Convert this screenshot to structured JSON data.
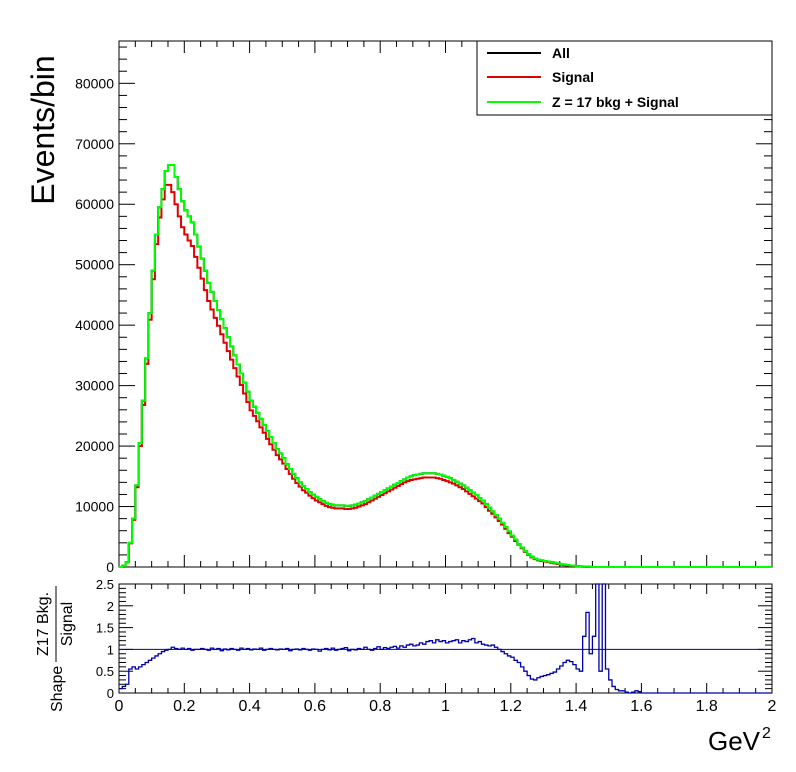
{
  "chart_data": [
    {
      "type": "line",
      "ylabel": "Events/bin",
      "xlim": [
        0,
        2
      ],
      "ylim": [
        0,
        87000
      ],
      "xticks": [
        "0",
        "0.2",
        "0.4",
        "0.6",
        "0.8",
        "1",
        "1.2",
        "1.4",
        "1.6",
        "1.8",
        "2"
      ],
      "yticks": [
        "0",
        "10000",
        "20000",
        "30000",
        "40000",
        "50000",
        "60000",
        "70000",
        "80000"
      ],
      "legend_position": "top-right",
      "bin_width": 0.01,
      "series": [
        {
          "name": "All",
          "color": "#000000",
          "values": [
            0,
            200,
            800,
            4000,
            8000,
            13500,
            20500,
            27500,
            34500,
            42000,
            49000,
            55000,
            59500,
            62500,
            65500,
            66500,
            66500,
            64500,
            62500,
            60500,
            59000,
            58000,
            57000,
            55000,
            53000,
            51000,
            49000,
            47000,
            45500,
            44000,
            42500,
            41000,
            39500,
            38000,
            36500,
            35000,
            33500,
            32000,
            30500,
            29000,
            27500,
            26500,
            25500,
            24500,
            23500,
            22500,
            21500,
            20500,
            19500,
            18800,
            18000,
            17000,
            16200,
            15400,
            14700,
            14000,
            13400,
            12900,
            12400,
            12000,
            11600,
            11200,
            10900,
            10600,
            10400,
            10300,
            10200,
            10200,
            10200,
            10100,
            10100,
            10200,
            10300,
            10500,
            10700,
            10900,
            11200,
            11500,
            11800,
            12100,
            12400,
            12700,
            13000,
            13300,
            13600,
            13900,
            14200,
            14500,
            14800,
            15000,
            15200,
            15300,
            15400,
            15500,
            15500,
            15500,
            15500,
            15400,
            15300,
            15100,
            14900,
            14700,
            14400,
            14100,
            13800,
            13500,
            13100,
            12700,
            12300,
            11900,
            11400,
            11000,
            10400,
            9800,
            9200,
            8600,
            8000,
            7300,
            6600,
            5900,
            5200,
            4500,
            3800,
            3200,
            2600,
            2100,
            1700,
            1400,
            1200,
            1100,
            1000,
            900,
            800,
            700,
            600,
            500,
            400,
            300,
            250,
            200,
            150,
            100,
            60,
            40,
            20,
            10,
            0,
            0,
            0,
            0,
            0,
            0,
            0,
            0,
            0,
            0,
            0,
            0,
            0,
            0,
            0,
            0,
            0,
            0,
            0,
            0,
            0,
            0,
            0,
            0,
            0,
            0,
            0,
            0,
            0,
            0,
            0,
            0,
            0,
            0,
            0,
            0,
            0,
            0,
            0,
            0,
            0,
            0,
            0,
            0,
            0,
            0,
            0,
            0,
            0,
            0,
            0,
            0,
            0,
            0,
            0,
            0,
            0,
            0,
            0,
            0,
            0,
            0
          ]
        },
        {
          "name": "Signal",
          "color": "#e00000",
          "values": [
            0,
            190,
            780,
            3900,
            7800,
            13200,
            20000,
            26800,
            33600,
            40900,
            47600,
            53400,
            57800,
            60800,
            63200,
            63200,
            62000,
            60000,
            58000,
            56200,
            55000,
            54000,
            53100,
            51300,
            49500,
            47700,
            45800,
            44000,
            42600,
            41200,
            39900,
            38500,
            37100,
            35700,
            34300,
            32900,
            31500,
            30100,
            28700,
            27300,
            25900,
            25000,
            24100,
            23100,
            22200,
            21200,
            20300,
            19400,
            18500,
            17800,
            17100,
            16200,
            15400,
            14600,
            13900,
            13300,
            12700,
            12300,
            11800,
            11400,
            11000,
            10700,
            10400,
            10100,
            9900,
            9800,
            9700,
            9700,
            9700,
            9600,
            9600,
            9700,
            9800,
            10000,
            10200,
            10400,
            10700,
            11000,
            11300,
            11600,
            11900,
            12200,
            12500,
            12800,
            13100,
            13400,
            13700,
            14000,
            14200,
            14400,
            14500,
            14600,
            14700,
            14800,
            14800,
            14800,
            14800,
            14700,
            14600,
            14400,
            14200,
            14000,
            13800,
            13500,
            13200,
            12900,
            12500,
            12100,
            11700,
            11300,
            10900,
            10500,
            9900,
            9300,
            8800,
            8200,
            7600,
            7000,
            6300,
            5600,
            5000,
            4300,
            3700,
            3100,
            2500,
            2000,
            1600,
            1300,
            1100,
            1000,
            900,
            800,
            700,
            600,
            500,
            400,
            300,
            250,
            200,
            150,
            100,
            60,
            40,
            20,
            10,
            5,
            0,
            0,
            0,
            0,
            0,
            0,
            0,
            0,
            0,
            0,
            0,
            0,
            0,
            0,
            0,
            0,
            0,
            0,
            0,
            0,
            0,
            0,
            0,
            0,
            0,
            0,
            0,
            0,
            0,
            0,
            0,
            0,
            0,
            0,
            0,
            0,
            0,
            0,
            0,
            0,
            0,
            0,
            0,
            0,
            0,
            0,
            0,
            0,
            0,
            0,
            0,
            0,
            0,
            0,
            0,
            0,
            0,
            0,
            0,
            0,
            0,
            0
          ]
        },
        {
          "name": "Z = 17 bkg + Signal",
          "color": "#00ff00",
          "values": [
            0,
            200,
            800,
            4000,
            8000,
            13500,
            20500,
            27500,
            34500,
            42000,
            49000,
            55000,
            59500,
            62500,
            65500,
            66500,
            66500,
            64500,
            62500,
            60500,
            59000,
            58000,
            57000,
            55000,
            53000,
            51000,
            49000,
            47000,
            45500,
            44000,
            42500,
            41000,
            39500,
            38000,
            36500,
            35000,
            33500,
            32000,
            30500,
            29000,
            27500,
            26500,
            25500,
            24500,
            23500,
            22500,
            21500,
            20500,
            19500,
            18800,
            18000,
            17000,
            16200,
            15400,
            14700,
            14000,
            13400,
            12900,
            12400,
            12000,
            11600,
            11200,
            10900,
            10600,
            10400,
            10300,
            10200,
            10200,
            10200,
            10100,
            10100,
            10200,
            10300,
            10500,
            10700,
            10900,
            11200,
            11500,
            11800,
            12100,
            12400,
            12700,
            13000,
            13300,
            13600,
            13900,
            14200,
            14500,
            14800,
            15000,
            15200,
            15300,
            15400,
            15500,
            15500,
            15500,
            15500,
            15400,
            15300,
            15100,
            14900,
            14700,
            14400,
            14100,
            13800,
            13500,
            13100,
            12700,
            12300,
            11900,
            11400,
            11000,
            10400,
            9800,
            9200,
            8600,
            8000,
            7300,
            6600,
            5900,
            5200,
            4500,
            3800,
            3200,
            2600,
            2100,
            1700,
            1400,
            1200,
            1100,
            1000,
            900,
            800,
            700,
            600,
            500,
            400,
            300,
            250,
            200,
            150,
            100,
            60,
            40,
            20,
            10,
            0,
            0,
            0,
            0,
            0,
            0,
            0,
            0,
            0,
            0,
            0,
            0,
            0,
            0,
            0,
            0,
            0,
            0,
            0,
            0,
            0,
            0,
            0,
            0,
            0,
            0,
            0,
            0,
            0,
            0,
            0,
            0,
            0,
            0,
            0,
            0,
            0,
            0,
            0,
            0,
            0,
            0,
            0,
            0,
            0,
            0,
            0,
            0,
            0,
            0,
            0,
            0,
            0,
            0,
            0,
            0,
            0,
            0,
            0,
            0,
            0,
            0
          ]
        }
      ]
    },
    {
      "type": "line",
      "xlabel": "GeV",
      "xlabel_superscript": "2",
      "ylabel_prefix": "Shape",
      "ylabel_numerator": "Z17 Bkg.",
      "ylabel_denominator": "Signal",
      "xlim": [
        0,
        2
      ],
      "ylim": [
        0,
        2.5
      ],
      "xticks": [
        "0",
        "0.2",
        "0.4",
        "0.6",
        "0.8",
        "1",
        "1.2",
        "1.4",
        "1.6",
        "1.8",
        "2"
      ],
      "yticks": [
        "0",
        "0.5",
        "1",
        "1.5",
        "2",
        "2.5"
      ],
      "reference_line": 1,
      "bin_width": 0.01,
      "series": [
        {
          "name": "",
          "color": "#0000aa",
          "values": [
            0.1,
            0.15,
            0.2,
            0.55,
            0.6,
            0.55,
            0.6,
            0.65,
            0.7,
            0.75,
            0.8,
            0.85,
            0.9,
            0.95,
            0.98,
            1.0,
            1.05,
            1.02,
            1.0,
            1.03,
            1.0,
            1.02,
            0.98,
            1.0,
            1.0,
            1.02,
            1.0,
            0.98,
            1.03,
            1.0,
            1.02,
            0.97,
            1.01,
            0.99,
            1.02,
            1.0,
            0.98,
            1.03,
            1.0,
            1.02,
            0.99,
            1.01,
            1.0,
            1.03,
            0.98,
            1.0,
            1.02,
            1.0,
            0.99,
            1.01,
            1.0,
            1.02,
            0.97,
            1.0,
            1.01,
            0.99,
            1.02,
            1.0,
            0.98,
            1.01,
            1.0,
            0.96,
            1.0,
            1.02,
            0.99,
            1.03,
            0.98,
            1.0,
            1.02,
            1.04,
            0.97,
            1.0,
            0.99,
            1.02,
            1.0,
            1.05,
            1.0,
            0.98,
            1.02,
            1.06,
            1.0,
            1.04,
            1.02,
            1.05,
            1.07,
            1.03,
            1.08,
            1.05,
            1.1,
            1.12,
            1.08,
            1.1,
            1.15,
            1.12,
            1.18,
            1.2,
            1.15,
            1.22,
            1.18,
            1.2,
            1.15,
            1.18,
            1.2,
            1.22,
            1.15,
            1.2,
            1.18,
            1.22,
            1.25,
            1.15,
            1.18,
            1.12,
            1.1,
            1.08,
            1.1,
            1.05,
            1.0,
            0.95,
            0.9,
            0.85,
            0.82,
            0.75,
            0.7,
            0.6,
            0.5,
            0.4,
            0.32,
            0.3,
            0.35,
            0.38,
            0.4,
            0.42,
            0.45,
            0.48,
            0.55,
            0.62,
            0.7,
            0.75,
            0.72,
            0.65,
            0.55,
            0.5,
            1.3,
            1.85,
            0.9,
            1.3,
            2.5,
            0.5,
            2.5,
            0.55,
            0.3,
            0.15,
            0.08,
            0.05,
            0.05,
            0.02,
            0,
            0.02,
            0.05,
            0.03,
            0,
            0,
            0,
            0,
            0,
            0,
            0,
            0,
            0,
            0,
            0,
            0,
            0,
            0,
            0,
            0,
            0,
            0,
            0,
            0,
            0,
            0,
            0,
            0,
            0,
            0,
            0,
            0,
            0,
            0,
            0,
            0,
            0,
            0,
            0,
            0,
            0,
            0,
            0,
            0,
            0,
            0,
            0,
            0,
            0,
            0,
            0
          ]
        }
      ]
    }
  ]
}
